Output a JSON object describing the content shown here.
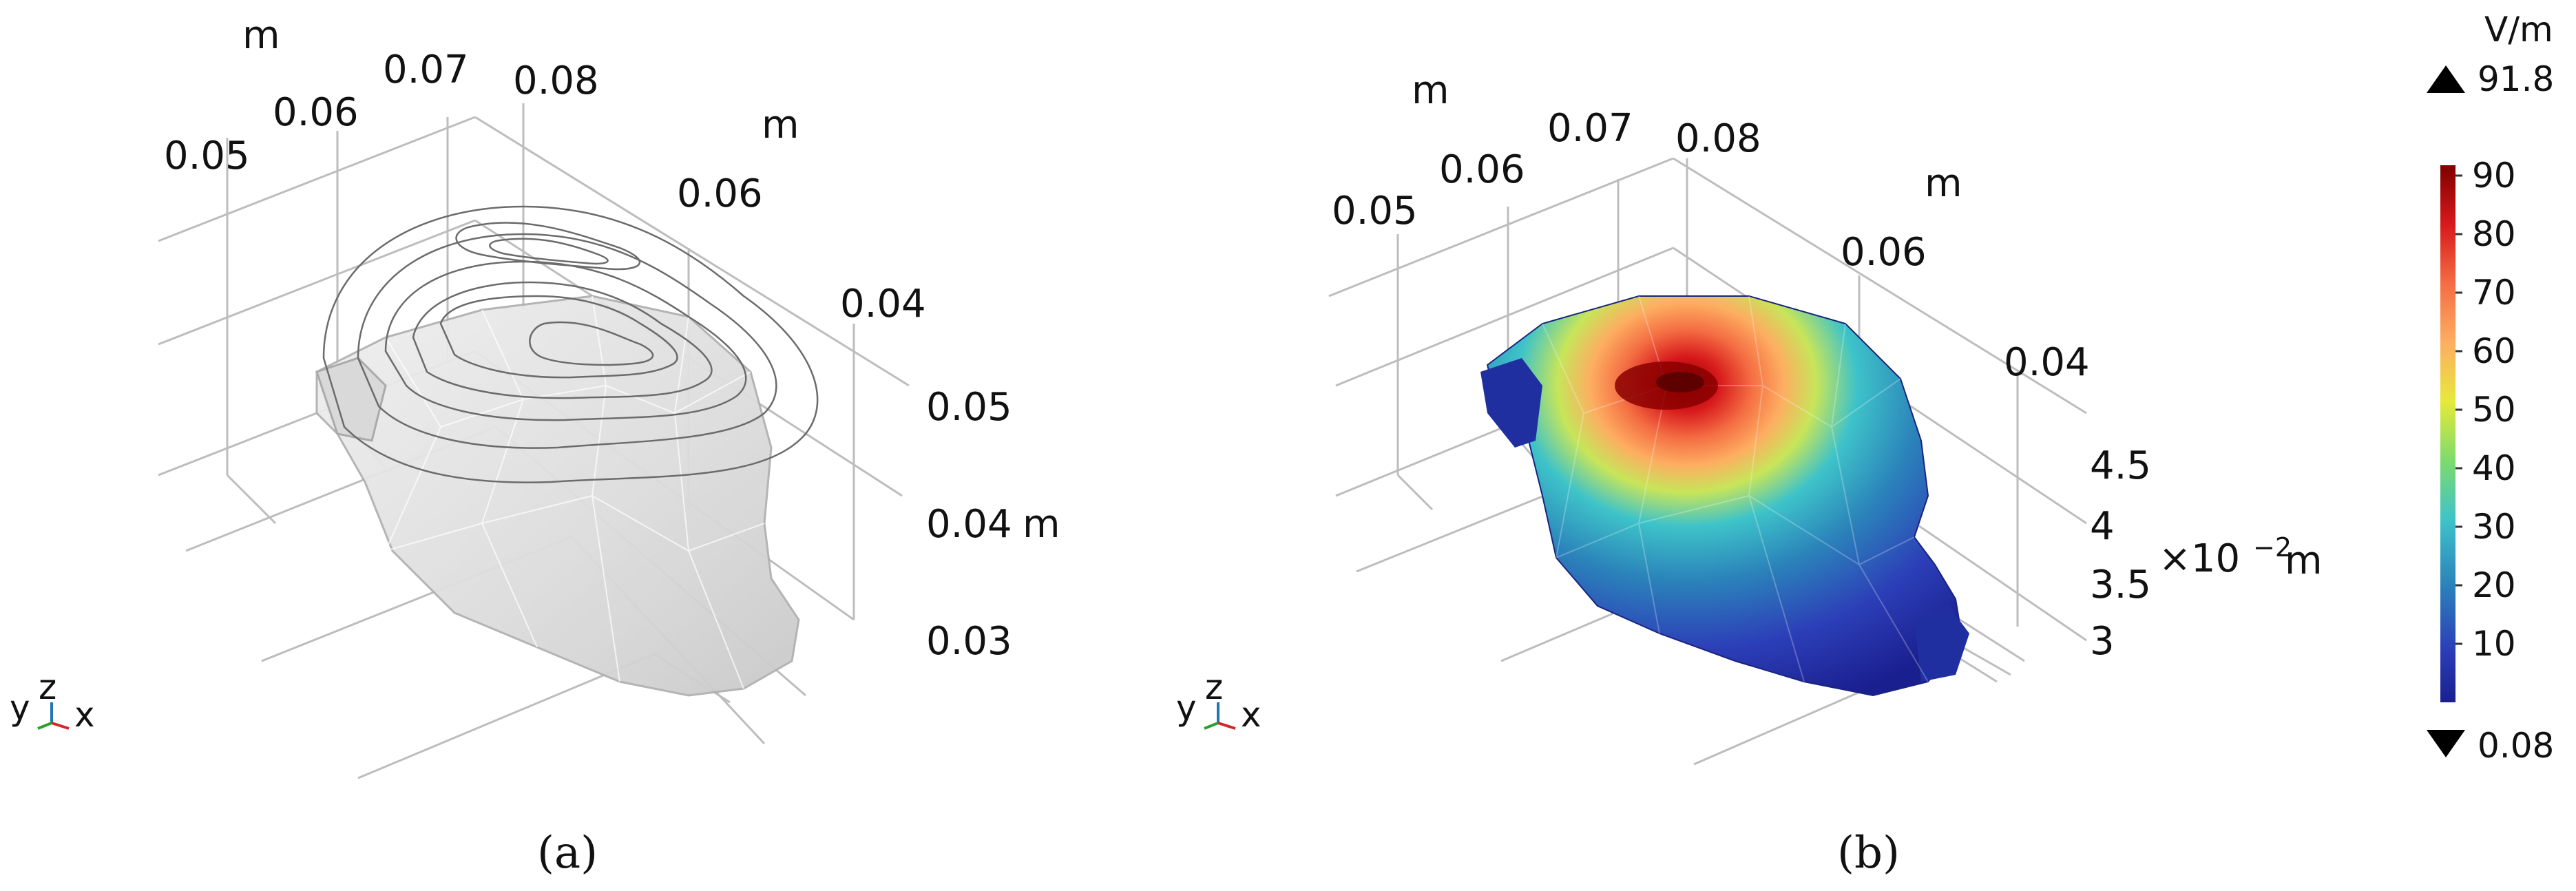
{
  "panel_a": {
    "caption": "(a)",
    "top_unit": "m",
    "top_ticks": [
      "0.05",
      "0.06",
      "0.07",
      "0.08"
    ],
    "right_unit": "m",
    "right_ticks": [
      "0.06",
      "0.04"
    ],
    "z_ticks": [
      "0.05",
      "0.04",
      "0.03"
    ],
    "z_unit": "m",
    "triad": {
      "y": "y",
      "z": "z",
      "x": "x"
    }
  },
  "panel_b": {
    "caption": "(b)",
    "top_unit": "m",
    "top_ticks": [
      "0.05",
      "0.06",
      "0.07",
      "0.08"
    ],
    "right_unit": "m",
    "right_ticks": [
      "0.06",
      "0.04"
    ],
    "z_ticks": [
      "4.5",
      "4",
      "3.5",
      "3"
    ],
    "z_unit_prefix": "×10",
    "z_unit_exp": "−2",
    "z_unit_suffix": " m",
    "triad": {
      "y": "y",
      "z": "z",
      "x": "x"
    }
  },
  "colorbar": {
    "unit": "V/m",
    "max_label": "91.8",
    "min_label": "0.08",
    "ticks": [
      "90",
      "80",
      "70",
      "60",
      "50",
      "40",
      "30",
      "20",
      "10"
    ],
    "colors": [
      "#8b0000",
      "#d7191c",
      "#f46d43",
      "#fdae61",
      "#fee08b",
      "#a6d96a",
      "#3ec3c9",
      "#2b83ba",
      "#2c3fb8",
      "#1a1f8f"
    ]
  }
}
